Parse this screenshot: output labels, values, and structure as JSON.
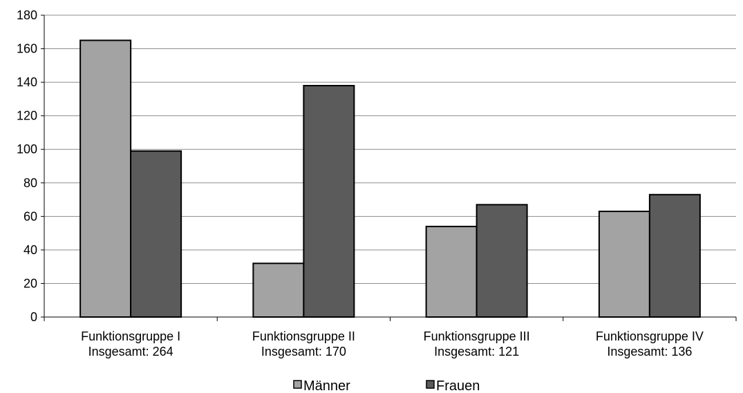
{
  "chart_data": {
    "type": "bar",
    "categories": [
      [
        "Funktionsgruppe I",
        "Insgesamt: 264"
      ],
      [
        "Funktionsgruppe II",
        "Insgesamt: 170"
      ],
      [
        "Funktionsgruppe III",
        "Insgesamt: 121"
      ],
      [
        "Funktionsgruppe IV",
        "Insgesamt: 136"
      ]
    ],
    "series": [
      {
        "name": "Männer",
        "values": [
          165,
          32,
          54,
          63
        ],
        "color": "#a3a3a3"
      },
      {
        "name": "Frauen",
        "values": [
          99,
          138,
          67,
          73
        ],
        "color": "#5b5b5b"
      }
    ],
    "y_ticks": [
      "0",
      "20",
      "40",
      "60",
      "80",
      "100",
      "120",
      "140",
      "160",
      "180"
    ],
    "ylim": [
      0,
      180
    ],
    "grid": true,
    "legend_position": "bottom",
    "title": "",
    "xlabel": "",
    "ylabel": ""
  }
}
